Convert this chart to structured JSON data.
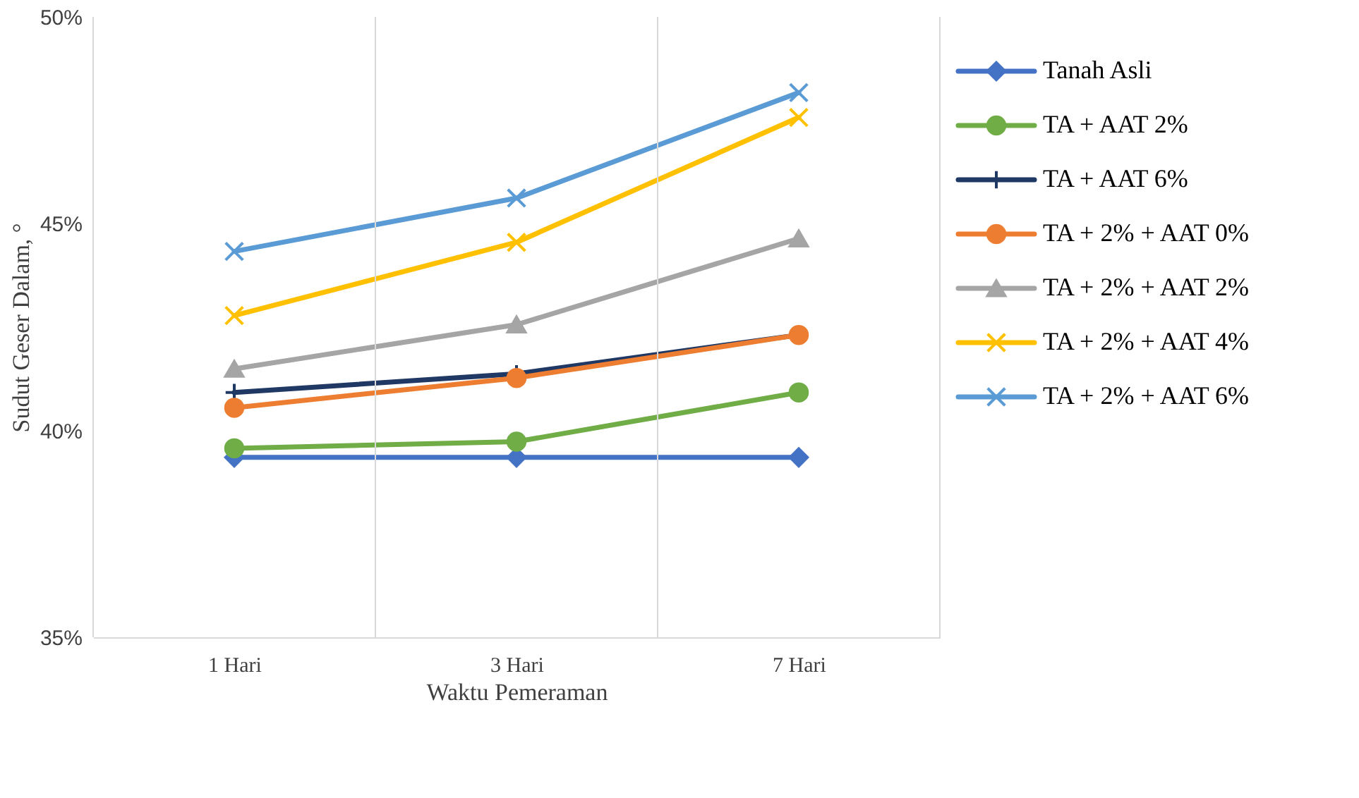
{
  "chart_data": {
    "type": "line",
    "xlabel": "Waktu Pemeraman",
    "ylabel": "Sudut Geser Dalam, °",
    "categories": [
      "1 Hari",
      "3 Hari",
      "7 Hari"
    ],
    "ylim": [
      35,
      50
    ],
    "yticks": [
      {
        "value": 35,
        "label": "35%"
      },
      {
        "value": 40,
        "label": "40%"
      },
      {
        "value": 45,
        "label": "45%"
      },
      {
        "value": 50,
        "label": "50%"
      }
    ],
    "grid": "x",
    "legend": "right",
    "line_style": "solid",
    "series": [
      {
        "name": "Tanah Asli",
        "color": "#4472c4",
        "marker": "diamond",
        "values": [
          39.35,
          39.35,
          39.35
        ]
      },
      {
        "name": "TA + AAT 2%",
        "color": "#70ad47",
        "marker": "circle",
        "values": [
          39.57,
          39.73,
          40.92
        ]
      },
      {
        "name": "TA +  AAT 6%",
        "color": "#203864",
        "marker": "cross",
        "values": [
          40.92,
          41.37,
          42.31
        ]
      },
      {
        "name": "TA + 2% + AAT 0%",
        "color": "#ed7d31",
        "marker": "circle",
        "values": [
          40.55,
          41.27,
          42.31
        ]
      },
      {
        "name": "TA + 2% + AAT 2%",
        "color": "#a5a5a5",
        "marker": "triangle",
        "values": [
          41.49,
          42.56,
          44.64
        ]
      },
      {
        "name": "TA + 2% + AAT 4%",
        "color": "#ffc000",
        "marker": "x",
        "values": [
          42.78,
          44.55,
          47.57
        ]
      },
      {
        "name": "TA + 2% + AAT 6%",
        "color": "#5b9bd5",
        "marker": "x",
        "values": [
          44.33,
          45.62,
          48.17
        ]
      }
    ]
  }
}
